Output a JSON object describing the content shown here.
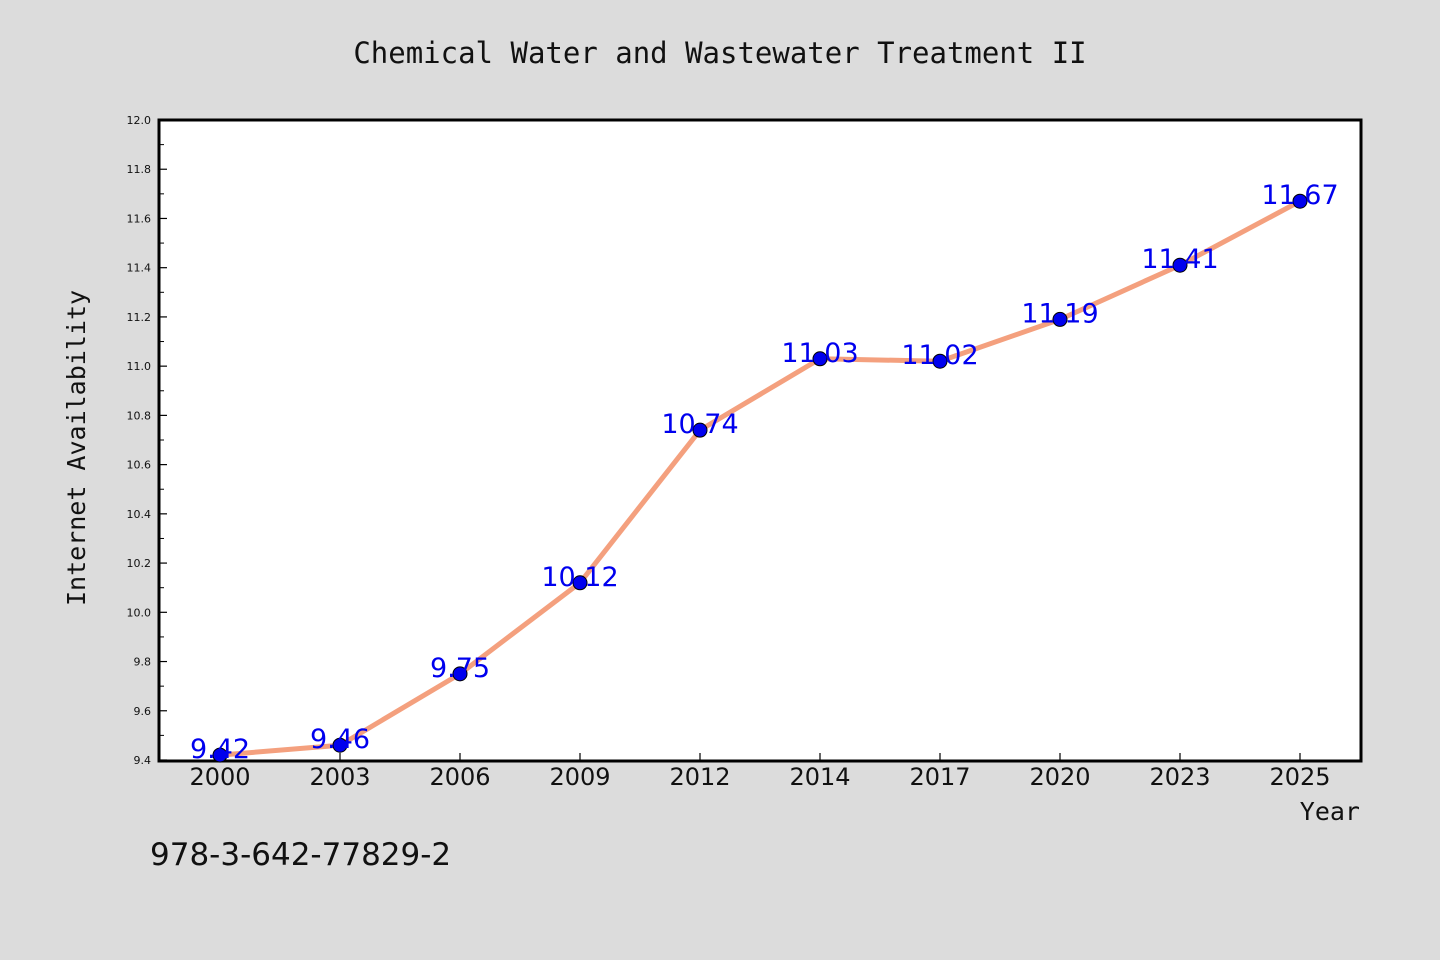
{
  "chart_data": {
    "type": "line",
    "title": "Chemical Water and Wastewater Treatment II",
    "xlabel": "Year",
    "ylabel": "Internet Availability",
    "categories": [
      "2000",
      "2003",
      "2006",
      "2009",
      "2012",
      "2014",
      "2017",
      "2020",
      "2023",
      "2025"
    ],
    "series": [
      {
        "values": [
          9.42,
          9.46,
          9.75,
          10.12,
          10.74,
          11.03,
          11.02,
          11.19,
          11.41,
          11.67
        ],
        "data_labels": [
          "9.42",
          "9.46",
          "9.75",
          "10.12",
          "10.74",
          "11.03",
          "11.02",
          "11.19",
          "11.41",
          "11.67"
        ]
      }
    ],
    "ylim": [
      9.4,
      12.0
    ],
    "yticks": [
      "9.4",
      "9.6",
      "9.8",
      "10.0",
      "10.2",
      "10.4",
      "10.6",
      "10.8",
      "11.0",
      "11.2",
      "11.4",
      "11.6",
      "11.8",
      "12.0"
    ],
    "grid": false,
    "legend": "none",
    "colors": {
      "line": "#f4a07e",
      "marker": "#0000ee",
      "label": "#0000ee",
      "background": "#dcdcdc",
      "plot_background": "#ffffff"
    }
  },
  "footer_text": "978-3-642-77829-2"
}
